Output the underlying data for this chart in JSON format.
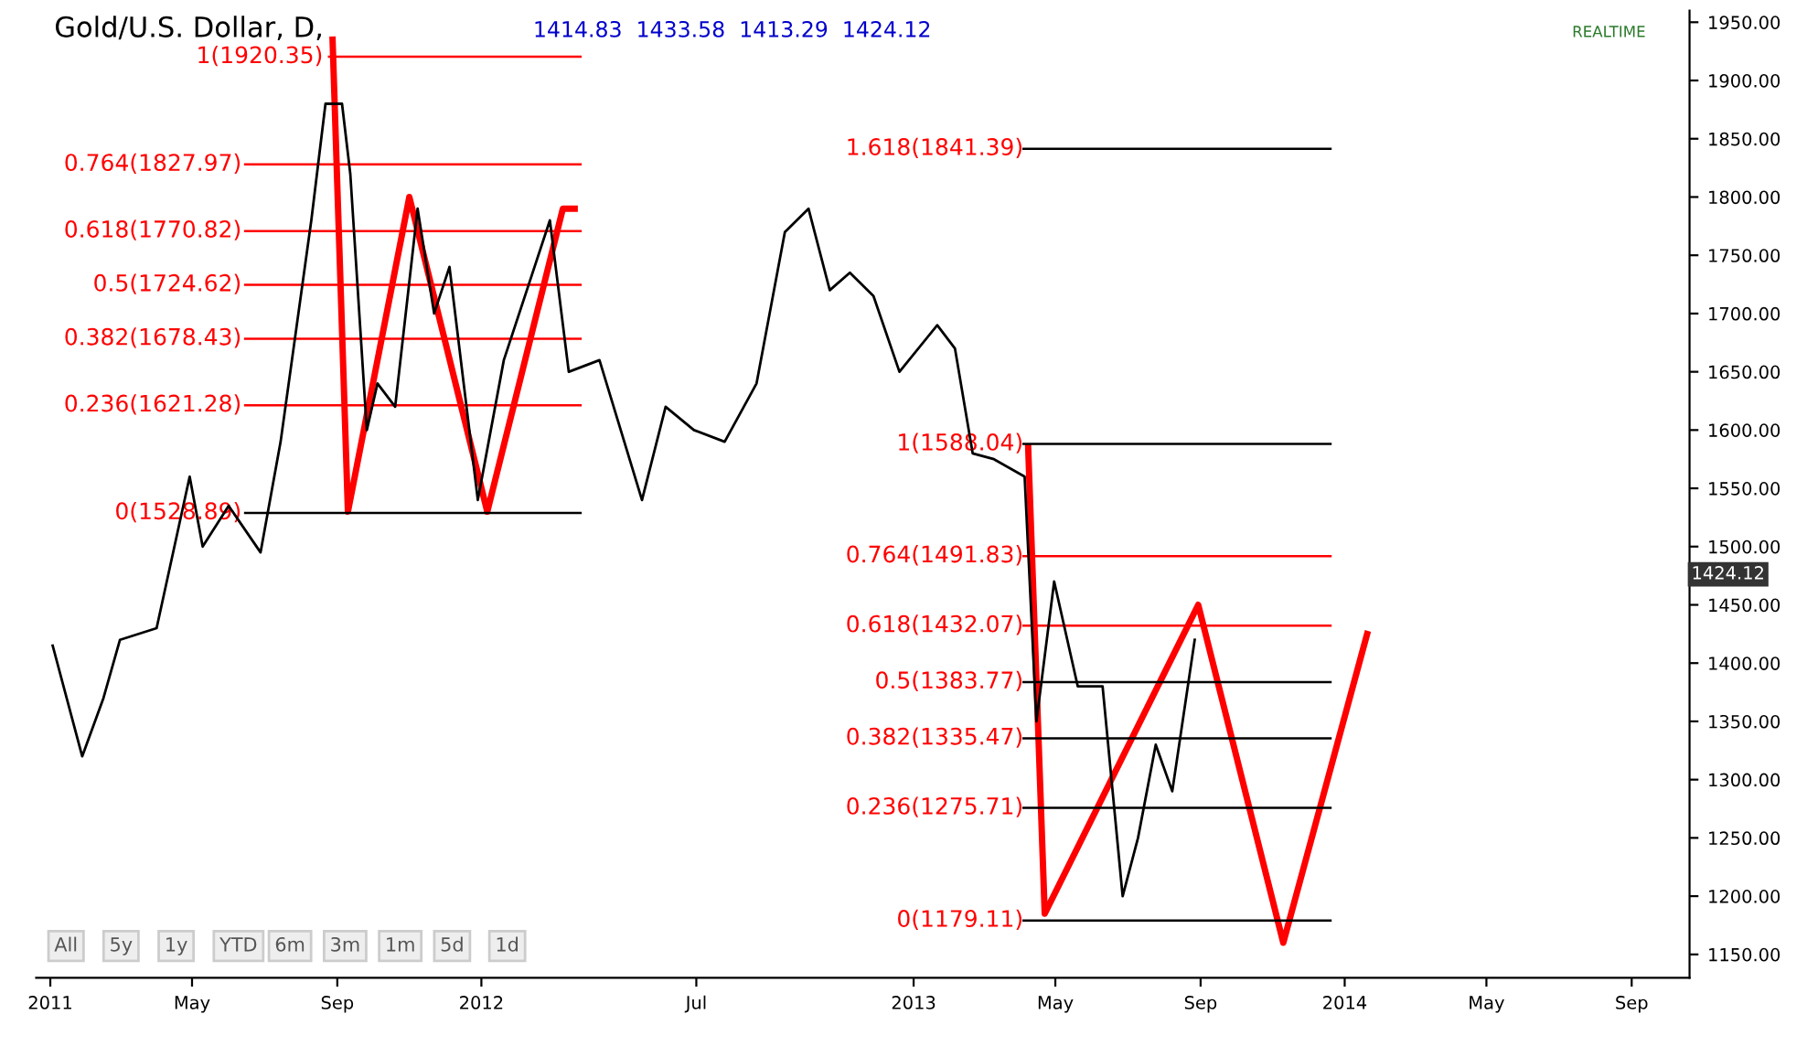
{
  "chart_data": {
    "type": "line",
    "title": "Gold/U.S. Dollar, D,",
    "subtitle": "1414.83  1433.58  1413.29  1424.12",
    "xlim": [
      "2010-12-20",
      "2014-10-20"
    ],
    "ylim": [
      1130,
      1960
    ],
    "xticks": [
      {
        "value": "2011-01-01",
        "label": "2011"
      },
      {
        "value": "2011-05-01",
        "label": "May"
      },
      {
        "value": "2011-09-01",
        "label": "Sep"
      },
      {
        "value": "2012-01-01",
        "label": "2012"
      },
      {
        "value": "2012-07-01",
        "label": "Jul"
      },
      {
        "value": "2013-01-01",
        "label": "2013"
      },
      {
        "value": "2013-05-01",
        "label": "May"
      },
      {
        "value": "2013-09-01",
        "label": "Sep"
      },
      {
        "value": "2014-01-01",
        "label": "2014"
      },
      {
        "value": "2014-05-01",
        "label": "May"
      },
      {
        "value": "2014-09-01",
        "label": "Sep"
      }
    ],
    "yticks": [
      {
        "value": 1150,
        "label": "1150.00"
      },
      {
        "value": 1200,
        "label": "1200.00"
      },
      {
        "value": 1250,
        "label": "1250.00"
      },
      {
        "value": 1300,
        "label": "1300.00"
      },
      {
        "value": 1350,
        "label": "1350.00"
      },
      {
        "value": 1400,
        "label": "1400.00"
      },
      {
        "value": 1450,
        "label": "1450.00"
      },
      {
        "value": 1500,
        "label": "1500.00"
      },
      {
        "value": 1550,
        "label": "1550.00"
      },
      {
        "value": 1600,
        "label": "1600.00"
      },
      {
        "value": 1650,
        "label": "1650.00"
      },
      {
        "value": 1700,
        "label": "1700.00"
      },
      {
        "value": 1750,
        "label": "1750.00"
      },
      {
        "value": 1800,
        "label": "1800.00"
      },
      {
        "value": 1850,
        "label": "1850.00"
      },
      {
        "value": 1900,
        "label": "1900.00"
      },
      {
        "value": 1950,
        "label": "1950.00"
      }
    ],
    "grid": false,
    "legend": false,
    "series": [
      {
        "color": "#000000",
        "x": [
          "2011-01-03",
          "2011-01-28",
          "2011-02-15",
          "2011-03-01",
          "2011-04-01",
          "2011-04-29",
          "2011-05-10",
          "2011-06-01",
          "2011-06-28",
          "2011-07-15",
          "2011-08-10",
          "2011-08-22",
          "2011-09-05",
          "2011-09-12",
          "2011-09-26",
          "2011-10-05",
          "2011-10-20",
          "2011-11-08",
          "2011-11-22",
          "2011-12-05",
          "2011-12-29",
          "2012-01-20",
          "2012-02-28",
          "2012-03-15",
          "2012-04-10",
          "2012-05-16",
          "2012-06-05",
          "2012-06-29",
          "2012-07-25",
          "2012-08-21",
          "2012-09-14",
          "2012-10-04",
          "2012-10-22",
          "2012-11-08",
          "2012-11-28",
          "2012-12-20",
          "2013-01-21",
          "2013-02-05",
          "2013-02-20",
          "2013-03-10",
          "2013-04-05",
          "2013-04-15",
          "2013-04-30",
          "2013-05-20",
          "2013-06-10",
          "2013-06-27",
          "2013-07-10",
          "2013-07-25",
          "2013-08-08",
          "2013-08-27"
        ],
        "values": [
          1415,
          1320,
          1370,
          1420,
          1430,
          1560,
          1500,
          1535,
          1495,
          1590,
          1780,
          1880,
          1880,
          1820,
          1600,
          1640,
          1620,
          1790,
          1700,
          1740,
          1540,
          1660,
          1780,
          1650,
          1660,
          1540,
          1620,
          1600,
          1590,
          1640,
          1770,
          1790,
          1720,
          1735,
          1715,
          1650,
          1690,
          1670,
          1580,
          1575,
          1560,
          1350,
          1470,
          1380,
          1380,
          1200,
          1250,
          1330,
          1290,
          1420
        ]
      },
      {
        "color": "#ff0000",
        "x": [
          "2011-08-28",
          "2011-09-10",
          "2011-11-01",
          "2012-01-06",
          "2012-03-10",
          "2012-03-20"
        ],
        "values": [
          1935,
          1530,
          1800,
          1530,
          1790,
          1790
        ]
      },
      {
        "color": "#ff0000",
        "x": [
          "2013-04-08",
          "2013-04-22",
          "2013-08-30",
          "2013-11-10",
          "2014-01-20"
        ],
        "values": [
          1585,
          1185,
          1450,
          1160,
          1425
        ]
      },
      {
        "color": "#ff0000",
        "x": [
          "2011-08-25",
          "2012-03-25"
        ],
        "values": [
          1920.35,
          1920.35
        ]
      },
      {
        "color": "#ff0000",
        "x": [
          "2011-06-15",
          "2012-03-25"
        ],
        "values": [
          1827.97,
          1827.97
        ]
      },
      {
        "color": "#ff0000",
        "x": [
          "2011-06-15",
          "2012-03-25"
        ],
        "values": [
          1770.82,
          1770.82
        ]
      },
      {
        "color": "#ff0000",
        "x": [
          "2011-06-15",
          "2012-03-25"
        ],
        "values": [
          1724.62,
          1724.62
        ]
      },
      {
        "color": "#ff0000",
        "x": [
          "2011-06-15",
          "2012-03-25"
        ],
        "values": [
          1678.43,
          1678.43
        ]
      },
      {
        "color": "#ff0000",
        "x": [
          "2011-06-15",
          "2012-03-25"
        ],
        "values": [
          1621.28,
          1621.28
        ]
      },
      {
        "color": "#000000",
        "x": [
          "2011-06-15",
          "2012-03-25"
        ],
        "values": [
          1528.89,
          1528.89
        ]
      },
      {
        "color": "#000000",
        "x": [
          "2013-04-04",
          "2013-12-20"
        ],
        "values": [
          1841.39,
          1841.39
        ]
      },
      {
        "color": "#000000",
        "x": [
          "2013-04-04",
          "2013-12-20"
        ],
        "values": [
          1588.04,
          1588.04
        ]
      },
      {
        "color": "#ff0000",
        "x": [
          "2013-04-04",
          "2013-12-20"
        ],
        "values": [
          1491.83,
          1491.83
        ]
      },
      {
        "color": "#ff0000",
        "x": [
          "2013-04-04",
          "2013-12-20"
        ],
        "values": [
          1432.07,
          1432.07
        ]
      },
      {
        "color": "#000000",
        "x": [
          "2013-04-04",
          "2013-12-20"
        ],
        "values": [
          1383.77,
          1383.77
        ]
      },
      {
        "color": "#000000",
        "x": [
          "2013-04-04",
          "2013-12-20"
        ],
        "values": [
          1335.47,
          1335.47
        ]
      },
      {
        "color": "#000000",
        "x": [
          "2013-04-04",
          "2013-12-20"
        ],
        "values": [
          1275.71,
          1275.71
        ]
      },
      {
        "color": "#000000",
        "x": [
          "2013-04-04",
          "2013-12-20"
        ],
        "values": [
          1179.11,
          1179.11
        ]
      }
    ],
    "annotations": [
      "REALTIME",
      "All",
      "5y",
      "1y",
      "YTD",
      "6m",
      "3m",
      "1m",
      "5d",
      "1d",
      {
        "text": "1(1920.35)",
        "x": "2011-08-20",
        "y": 1920.35
      },
      {
        "text": "0.764(1827.97)",
        "x": "2011-06-12",
        "y": 1827.97
      },
      {
        "text": "0.618(1770.82)",
        "x": "2011-06-12",
        "y": 1770.82
      },
      {
        "text": "0.5(1724.62)",
        "x": "2011-06-12",
        "y": 1724.62
      },
      {
        "text": "0.382(1678.43)",
        "x": "2011-06-12",
        "y": 1678.43
      },
      {
        "text": "0.236(1621.28)",
        "x": "2011-06-12",
        "y": 1621.28
      },
      {
        "text": "0(1528.89)",
        "x": "2011-06-12",
        "y": 1528.89
      },
      {
        "text": "1.618(1841.39)",
        "x": "2013-04-04",
        "y": 1841.39
      },
      {
        "text": "1(1588.04)",
        "x": "2013-04-04",
        "y": 1588.04
      },
      {
        "text": "0.764(1491.83)",
        "x": "2013-04-04",
        "y": 1491.83
      },
      {
        "text": "0.618(1432.07)",
        "x": "2013-04-04",
        "y": 1432.07
      },
      {
        "text": "0.5(1383.77)",
        "x": "2013-04-04",
        "y": 1383.77
      },
      {
        "text": "0.382(1335.47)",
        "x": "2013-04-04",
        "y": 1335.47
      },
      {
        "text": "0.236(1275.71)",
        "x": "2013-04-04",
        "y": 1275.71
      },
      {
        "text": "0(1179.11)",
        "x": "2013-04-04",
        "y": 1179.11
      },
      "1424.12"
    ]
  }
}
